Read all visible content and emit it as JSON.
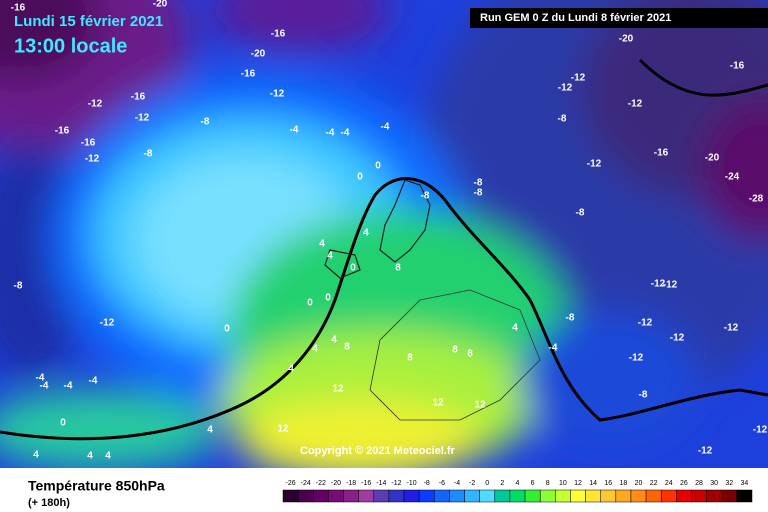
{
  "header": {
    "date": "Lundi 15 février 2021",
    "time": "13:00 locale",
    "run": "Run GEM 0 Z du Lundi 8 février 2021",
    "copyright": "Copyright © 2021 Meteociel.fr"
  },
  "footer": {
    "variable": "Température 850hPa",
    "lead": "(+ 180h)"
  },
  "scale": {
    "values": [
      -26,
      -24,
      -22,
      -20,
      -18,
      -16,
      -14,
      -12,
      -10,
      -8,
      -6,
      -4,
      -2,
      0,
      2,
      4,
      6,
      8,
      10,
      12,
      14,
      16,
      18,
      20,
      22,
      24,
      26,
      28,
      30,
      32,
      34
    ],
    "colors": [
      "#2a0030",
      "#4b0050",
      "#640064",
      "#7a0a7a",
      "#8c1e8c",
      "#a03ca0",
      "#5a3cb4",
      "#3232c8",
      "#1e1ee6",
      "#0a3cff",
      "#1464ff",
      "#1e8cff",
      "#32b4ff",
      "#50dcff",
      "#00c896",
      "#00dc64",
      "#32f032",
      "#8cff32",
      "#c8ff32",
      "#ffff32",
      "#ffe632",
      "#ffc832",
      "#ffaa1e",
      "#ff8c14",
      "#ff6400",
      "#ff3200",
      "#e60000",
      "#c80000",
      "#a00000",
      "#780000",
      "#000000"
    ]
  },
  "map_labels": [
    "-16",
    "-20",
    "-16",
    "-20",
    "-16",
    "-12",
    "-16",
    "-12",
    "-12",
    "-8",
    "-16",
    "-16",
    "-12",
    "-8",
    "-4",
    "-4",
    "-4",
    "-4",
    "0",
    "0",
    "-8",
    "-8",
    "-8",
    "4",
    "4",
    "4",
    "0",
    "8",
    "0",
    "0",
    "0",
    "4",
    "8",
    "4",
    "4",
    "-8",
    "-12",
    "-4",
    "-4",
    "-4",
    "-4",
    "0",
    "4",
    "12",
    "12",
    "12",
    "12",
    "8",
    "8",
    "8",
    "4",
    "-4",
    "-8",
    "-8",
    "-12",
    "-12",
    "-12",
    "-12",
    "-12",
    "-12",
    "-12",
    "-12",
    "-12",
    "-12",
    "-16",
    "-20",
    "-24",
    "-28",
    "-16",
    "-20",
    "-8",
    "-8",
    "-12",
    "-12",
    "4",
    "4",
    "4"
  ]
}
